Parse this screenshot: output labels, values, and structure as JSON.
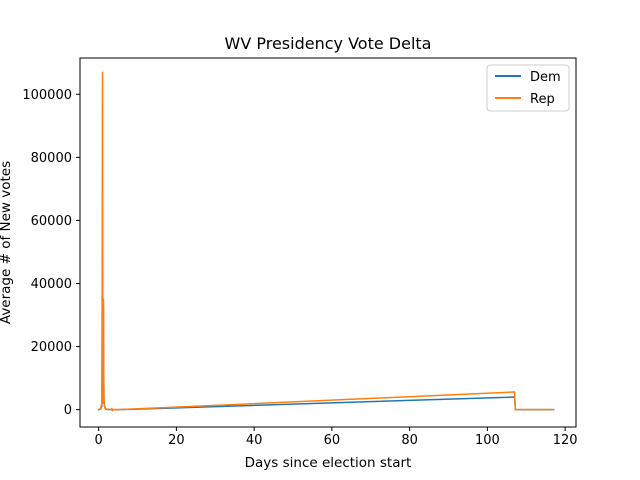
{
  "chart_data": {
    "type": "line",
    "title": "WV Presidency Vote Delta",
    "xlabel": "Days since election start",
    "ylabel": "Average # of New votes",
    "xlim": [
      -4.8,
      122.8
    ],
    "ylim": [
      -5500,
      111500
    ],
    "xticks": [
      0,
      20,
      40,
      60,
      80,
      100,
      120
    ],
    "yticks": [
      0,
      20000,
      40000,
      60000,
      80000,
      100000
    ],
    "grid": false,
    "legend_position": "top-right",
    "series": [
      {
        "name": "Dem",
        "color": "#1f77b4",
        "points": [
          [
            0.0,
            0
          ],
          [
            0.5,
            200
          ],
          [
            0.8,
            1000
          ],
          [
            0.95,
            18000
          ],
          [
            1.0,
            44000
          ],
          [
            1.05,
            9000
          ],
          [
            1.1,
            2000
          ],
          [
            1.2,
            33000
          ],
          [
            1.3,
            15000
          ],
          [
            1.35,
            3000
          ],
          [
            1.5,
            1000
          ],
          [
            1.8,
            200
          ],
          [
            2.5,
            0
          ],
          [
            3.3,
            0
          ],
          [
            3.4,
            200
          ],
          [
            3.5,
            -300
          ],
          [
            3.6,
            0
          ],
          [
            5.0,
            0
          ],
          [
            8.0,
            100
          ],
          [
            107.0,
            4000
          ],
          [
            107.2,
            0
          ],
          [
            117.0,
            0
          ]
        ]
      },
      {
        "name": "Rep",
        "color": "#ff7f0e",
        "points": [
          [
            0.0,
            0
          ],
          [
            0.5,
            300
          ],
          [
            0.8,
            2000
          ],
          [
            0.9,
            40000
          ],
          [
            0.97,
            100000
          ],
          [
            1.0,
            107000
          ],
          [
            1.03,
            60000
          ],
          [
            1.07,
            20000
          ],
          [
            1.1,
            5000
          ],
          [
            1.15,
            2000
          ],
          [
            1.25,
            35000
          ],
          [
            1.3,
            10000
          ],
          [
            1.4,
            2000
          ],
          [
            1.6,
            500
          ],
          [
            2.0,
            200
          ],
          [
            3.3,
            0
          ],
          [
            3.4,
            300
          ],
          [
            3.5,
            -300
          ],
          [
            3.6,
            0
          ],
          [
            5.0,
            0
          ],
          [
            8.0,
            150
          ],
          [
            107.0,
            5600
          ],
          [
            107.2,
            0
          ],
          [
            117.0,
            0
          ]
        ]
      }
    ]
  }
}
